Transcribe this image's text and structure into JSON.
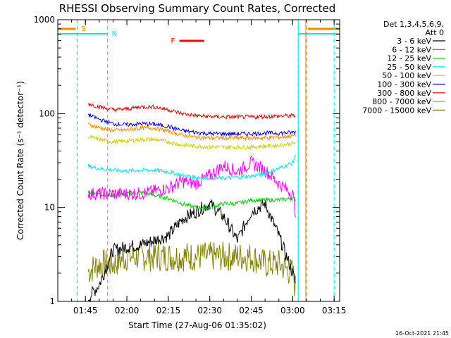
{
  "chart_data": {
    "type": "line",
    "title": "RHESSI Observing Summary Count Rates, Corrected",
    "xlabel": "Start Time (27-Aug-06 01:35:02)",
    "ylabel": "Corrected Count Rate (s⁻¹ detector⁻¹)",
    "ylog": true,
    "ylim": [
      1,
      1000
    ],
    "xlim": [
      "01:35",
      "03:17"
    ],
    "x_ticks": [
      "01:45",
      "02:00",
      "02:15",
      "02:30",
      "02:45",
      "03:00",
      "03:15"
    ],
    "y_ticks": [
      "1",
      "10",
      "100",
      "1000"
    ],
    "detectors": "Det 1,3,4,5,6,9,",
    "attenuator": "Att 0",
    "timestamp": "16-Oct-2021 21:45",
    "x": [
      "01:40",
      "01:45",
      "01:50",
      "01:55",
      "02:00",
      "02:05",
      "02:10",
      "02:15",
      "02:20",
      "02:25",
      "02:30",
      "02:35",
      "02:40",
      "02:45",
      "02:50",
      "02:55",
      "03:00",
      "03:02"
    ],
    "series": [
      {
        "name": "3 - 6 keV",
        "color": "#000000",
        "start": "01:46",
        "end": "03:01",
        "values": [
          null,
          1,
          1.5,
          3.5,
          3.8,
          4.0,
          4.5,
          5,
          7.5,
          9,
          11,
          8,
          4.5,
          9,
          11,
          5,
          2,
          1.2
        ]
      },
      {
        "name": "6 - 12 keV",
        "color": "#ff00ff",
        "start": "01:46",
        "end": "03:01",
        "values": [
          null,
          14,
          14,
          14,
          14,
          14,
          15,
          16,
          19,
          18,
          22,
          28,
          24,
          30,
          25,
          18,
          14,
          6
        ]
      },
      {
        "name": "12 - 25 keV",
        "color": "#00cc00",
        "start": "01:46",
        "end": "03:01",
        "values": [
          null,
          15,
          14,
          13.5,
          14,
          14.5,
          13.5,
          12.5,
          11,
          10,
          10,
          11,
          11,
          12,
          12,
          12,
          12.5,
          12
        ]
      },
      {
        "name": "25 - 50 keV",
        "color": "#00e5e5",
        "start": "01:46",
        "end": "03:01",
        "values": [
          null,
          28,
          26,
          25,
          24.5,
          25,
          25,
          24,
          22,
          21,
          20.5,
          20.5,
          21,
          21.5,
          23,
          26,
          30,
          40
        ]
      },
      {
        "name": "50 - 100 keV",
        "color": "#cccc00",
        "start": "01:46",
        "end": "03:01",
        "values": [
          null,
          58,
          53,
          50,
          51,
          53,
          53,
          50,
          46,
          45,
          44,
          44,
          44,
          44,
          45,
          46,
          48,
          50
        ]
      },
      {
        "name": "100 - 300 keV",
        "color": "#0000dd",
        "start": "01:46",
        "end": "03:01",
        "values": [
          null,
          100,
          87,
          78,
          76,
          78,
          77,
          73,
          66,
          63,
          61,
          61,
          61,
          61,
          62,
          62,
          63,
          65
        ]
      },
      {
        "name": "300 - 800 keV",
        "color": "#dd0000",
        "start": "01:46",
        "end": "03:01",
        "values": [
          null,
          130,
          118,
          110,
          112,
          118,
          118,
          110,
          100,
          95,
          93,
          92,
          92,
          92,
          93,
          94,
          95,
          96
        ]
      },
      {
        "name": "800 - 7000 keV",
        "color": "#ff8800",
        "start": "01:46",
        "end": "03:01",
        "values": [
          null,
          78,
          71,
          66,
          67,
          70,
          70,
          65,
          59,
          56,
          55,
          55,
          55,
          55,
          55,
          56,
          58,
          60
        ]
      },
      {
        "name": "7000 - 15000 keV",
        "color": "#808000",
        "start": "01:46",
        "end": "03:01",
        "values": [
          null,
          2,
          2.5,
          2.5,
          3,
          3,
          3,
          3,
          3,
          3,
          3,
          3,
          3,
          3,
          2.5,
          2.5,
          2,
          1
        ]
      }
    ],
    "annotations": [
      {
        "label": "S",
        "color": "#ff8800",
        "times": [
          "01:42",
          "03:05"
        ]
      },
      {
        "label": "N",
        "color": "#00e5e5",
        "times": [
          "01:53",
          "03:02",
          "03:15"
        ]
      },
      {
        "label": "F",
        "color": "#ff0000",
        "times": [
          "02:19",
          "02:28"
        ]
      }
    ]
  }
}
